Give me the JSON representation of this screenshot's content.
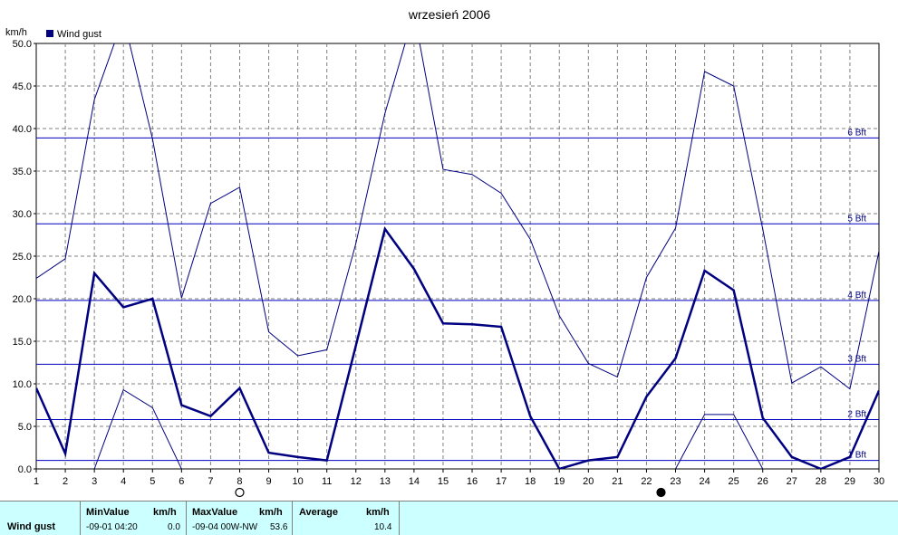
{
  "chart_data": {
    "type": "line",
    "title": "wrzesień 2006",
    "ylabel": "km/h",
    "ylim": [
      0,
      50
    ],
    "yticks": [
      "0.0",
      "5.0",
      "10.0",
      "15.0",
      "20.0",
      "25.0",
      "30.0",
      "35.0",
      "40.0",
      "45.0",
      "50.0"
    ],
    "x": [
      1,
      2,
      3,
      4,
      5,
      6,
      7,
      8,
      9,
      10,
      11,
      12,
      13,
      14,
      15,
      16,
      17,
      18,
      19,
      20,
      21,
      22,
      23,
      24,
      25,
      26,
      27,
      28,
      29,
      30
    ],
    "grid": true,
    "legend": {
      "position": "top-left",
      "entries": [
        "Wind gust"
      ]
    },
    "series": [
      {
        "name": "Wind gust",
        "role": "average",
        "values": [
          9.5,
          1.8,
          23.0,
          19.0,
          20.0,
          7.5,
          6.2,
          9.5,
          1.9,
          1.4,
          1.0,
          14.5,
          28.2,
          23.5,
          17.1,
          17.0,
          16.7,
          6.2,
          0.0,
          1.0,
          1.4,
          8.5,
          13.0,
          23.3,
          21.0,
          6.0,
          1.4,
          0.0,
          1.4,
          9.2
        ]
      },
      {
        "role": "max",
        "values": [
          22.4,
          24.7,
          43.4,
          53.0,
          38.8,
          20.1,
          31.2,
          33.1,
          16.1,
          13.3,
          14.0,
          26.5,
          41.8,
          53.6,
          35.2,
          34.6,
          32.4,
          27.0,
          18.0,
          12.4,
          10.8,
          22.5,
          28.3,
          46.7,
          45.0,
          28.2,
          10.1,
          12.0,
          9.4,
          25.6
        ]
      },
      {
        "role": "min",
        "values": [
          null,
          null,
          0.0,
          9.3,
          7.2,
          0.0,
          null,
          null,
          null,
          null,
          null,
          null,
          null,
          null,
          null,
          null,
          null,
          null,
          null,
          null,
          null,
          null,
          0.0,
          6.4,
          6.4,
          0.0,
          null,
          null,
          null,
          null
        ]
      }
    ],
    "thresholds": [
      {
        "label": "1 Bft",
        "value": 1.0
      },
      {
        "label": "2 Bft",
        "value": 5.8
      },
      {
        "label": "3 Bft",
        "value": 12.3
      },
      {
        "label": "4 Bft",
        "value": 19.8
      },
      {
        "label": "5 Bft",
        "value": 28.8
      },
      {
        "label": "6 Bft",
        "value": 38.9
      }
    ],
    "moon_phases": [
      {
        "day": 8,
        "phase": "full"
      },
      {
        "day": 22.5,
        "phase": "new"
      }
    ]
  },
  "stats": {
    "row_label": "Wind gust",
    "min": {
      "header": "MinValue",
      "unit": "km/h",
      "when": "-09-01  04:20",
      "value": "0.0"
    },
    "max": {
      "header": "MaxValue",
      "unit": "km/h",
      "when": "-09-04  00W-NW",
      "value": "53.6"
    },
    "avg": {
      "header": "Average",
      "unit": "km/h",
      "value": "10.4"
    }
  },
  "colors": {
    "series": "#000080",
    "threshold": "#0000c0",
    "grid": "#808080",
    "stats_bg": "#ccffff"
  }
}
